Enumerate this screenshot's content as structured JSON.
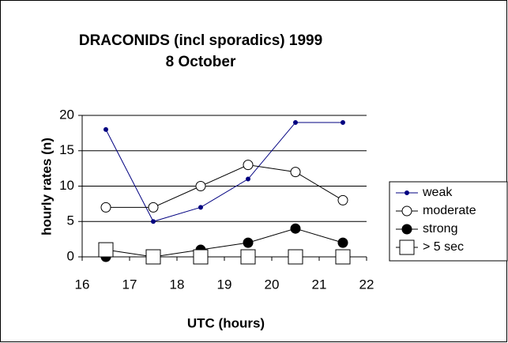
{
  "chart_data": {
    "type": "line",
    "title": "DRACONIDS (incl sporadics) 1999",
    "subtitle": "8 October",
    "x_label": "UTC (hours)",
    "y_label": "hourly rates (n)",
    "x": [
      16.5,
      17.5,
      18.5,
      19.5,
      20.5,
      21.5
    ],
    "series": [
      {
        "name": "weak",
        "color": "#000080",
        "marker": "dot",
        "values": [
          18,
          5,
          7,
          11,
          19,
          19
        ]
      },
      {
        "name": "moderate",
        "color": "#000000",
        "marker": "open-circle",
        "values": [
          7,
          7,
          10,
          13,
          12,
          8
        ]
      },
      {
        "name": "strong",
        "color": "#000000",
        "marker": "filled-circle",
        "values": [
          0,
          0,
          1,
          2,
          4,
          2
        ]
      },
      {
        "name": "> 5 sec",
        "color": "#000000",
        "marker": "open-square",
        "values": [
          1,
          0,
          0,
          0,
          0,
          0
        ]
      }
    ],
    "xlim": [
      16,
      22
    ],
    "xticks": [
      16,
      17,
      18,
      19,
      20,
      21,
      22
    ],
    "ylim": [
      0,
      20
    ],
    "yticks": [
      0,
      5,
      10,
      15,
      20
    ],
    "grid": true,
    "legend": "right"
  }
}
